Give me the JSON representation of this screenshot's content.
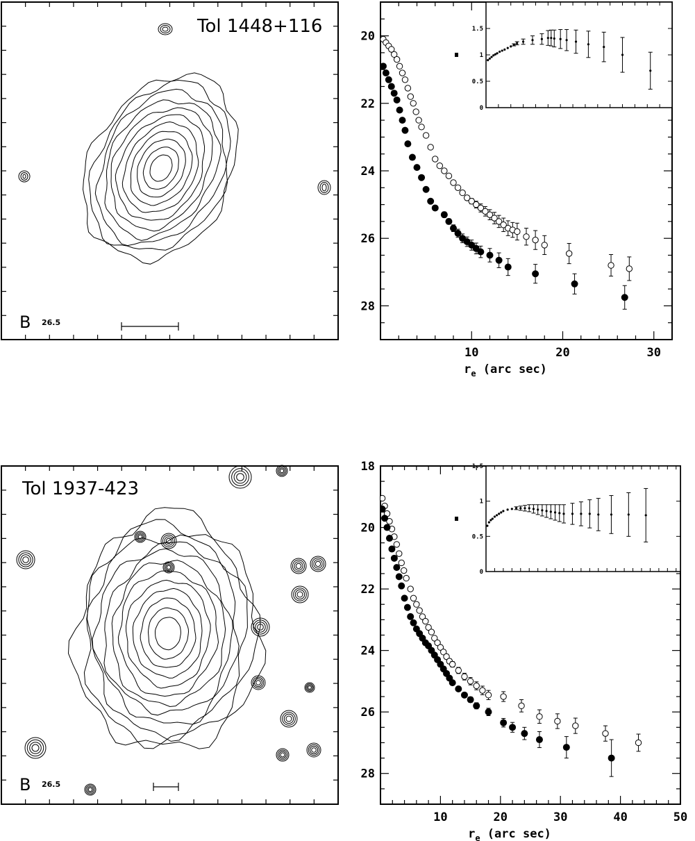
{
  "colors": {
    "ink": "#000000",
    "paper": "#ffffff"
  },
  "chart_data": [
    {
      "type": "contour",
      "title": "Tol 1448+116",
      "band_label": "B",
      "isophote_label": "26.5"
    },
    {
      "type": "scatter",
      "xlabel": "r",
      "xlabel_sub": "e",
      "xlabel_tail": " (arc sec)",
      "xlim": [
        0,
        32
      ],
      "ylim": [
        29,
        19
      ],
      "xticks": [
        10,
        20,
        30
      ],
      "yticks": [
        20,
        22,
        24,
        26,
        28
      ],
      "series": [
        {
          "marker": "open-circle",
          "x": [
            0.3,
            0.6,
            0.9,
            1.2,
            1.5,
            1.8,
            2.1,
            2.4,
            2.7,
            3.0,
            3.3,
            3.6,
            3.9,
            4.2,
            4.5,
            5.0,
            5.5,
            6.0,
            6.5,
            7.0,
            7.5,
            8.0,
            8.5,
            9.0,
            9.5,
            10.0,
            10.5,
            11.0,
            11.5,
            12.0,
            12.5,
            13.0,
            13.5,
            14.0,
            14.5,
            15.0,
            16.0,
            17.0,
            18.0,
            20.7,
            25.3,
            27.3
          ],
          "y": [
            20.1,
            20.2,
            20.3,
            20.4,
            20.55,
            20.7,
            20.9,
            21.1,
            21.3,
            21.55,
            21.8,
            22.0,
            22.25,
            22.5,
            22.7,
            22.95,
            23.3,
            23.65,
            23.85,
            24.0,
            24.15,
            24.35,
            24.5,
            24.65,
            24.8,
            24.9,
            25.0,
            25.1,
            25.2,
            25.3,
            25.4,
            25.5,
            25.6,
            25.7,
            25.75,
            25.8,
            25.95,
            26.05,
            26.2,
            26.45,
            26.8,
            26.9
          ],
          "yerr": [
            0,
            0,
            0,
            0,
            0,
            0,
            0,
            0,
            0,
            0,
            0,
            0,
            0,
            0,
            0,
            0,
            0,
            0,
            0,
            0,
            0,
            0,
            0,
            0.05,
            0.07,
            0.08,
            0.1,
            0.12,
            0.14,
            0.15,
            0.17,
            0.18,
            0.2,
            0.22,
            0.22,
            0.25,
            0.25,
            0.28,
            0.28,
            0.3,
            0.32,
            0.35
          ]
        },
        {
          "marker": "filled-circle",
          "x": [
            0.3,
            0.6,
            0.9,
            1.2,
            1.5,
            1.8,
            2.1,
            2.4,
            2.7,
            3.0,
            3.5,
            4.0,
            4.5,
            5.0,
            5.5,
            6.0,
            7.0,
            7.5,
            8.0,
            8.5,
            9.0,
            9.5,
            10.0,
            10.5,
            11.0,
            12.0,
            13.0,
            14.0,
            17.0,
            21.3,
            26.8
          ],
          "y": [
            20.9,
            21.1,
            21.3,
            21.5,
            21.7,
            21.9,
            22.2,
            22.5,
            22.8,
            23.2,
            23.6,
            23.9,
            24.2,
            24.55,
            24.9,
            25.1,
            25.3,
            25.5,
            25.7,
            25.85,
            26.0,
            26.1,
            26.2,
            26.3,
            26.4,
            26.5,
            26.65,
            26.85,
            27.05,
            27.35,
            27.75
          ],
          "yerr": [
            0,
            0,
            0,
            0,
            0,
            0,
            0,
            0,
            0,
            0,
            0,
            0,
            0,
            0,
            0,
            0,
            0.08,
            0.08,
            0.1,
            0.12,
            0.13,
            0.14,
            0.15,
            0.16,
            0.17,
            0.2,
            0.22,
            0.25,
            0.28,
            0.3,
            0.35
          ]
        }
      ],
      "inset": {
        "xlim": [
          0,
          30
        ],
        "ylim": [
          0,
          2
        ],
        "yticks": [
          0,
          0.5,
          1,
          1.5
        ],
        "yticklabels": [
          "0",
          "0.5",
          "1",
          "1.5"
        ],
        "x": [
          0.3,
          0.6,
          0.9,
          1.2,
          1.5,
          1.8,
          2.2,
          2.6,
          3.0,
          3.5,
          4.0,
          4.5,
          5.0,
          6.0,
          7.5,
          9.0,
          10.0,
          10.5,
          11.0,
          12.0,
          13.0,
          14.5,
          16.5,
          19.0,
          22.0,
          26.5
        ],
        "y": [
          0.9,
          0.93,
          0.96,
          0.99,
          1.01,
          1.03,
          1.06,
          1.08,
          1.1,
          1.13,
          1.16,
          1.19,
          1.22,
          1.25,
          1.28,
          1.3,
          1.32,
          1.32,
          1.31,
          1.3,
          1.28,
          1.25,
          1.2,
          1.15,
          1.0,
          0.7
        ],
        "yerr": [
          0,
          0,
          0,
          0,
          0,
          0,
          0,
          0,
          0,
          0,
          0,
          0.02,
          0.03,
          0.05,
          0.08,
          0.1,
          0.14,
          0.15,
          0.16,
          0.18,
          0.2,
          0.22,
          0.25,
          0.28,
          0.33,
          0.35
        ]
      }
    },
    {
      "type": "contour",
      "title": "Tol 1937-423",
      "band_label": "B",
      "isophote_label": "26.5"
    },
    {
      "type": "scatter",
      "xlabel": "r",
      "xlabel_sub": "e",
      "xlabel_tail": " (arc sec)",
      "xlim": [
        0,
        50
      ],
      "ylim": [
        29,
        18
      ],
      "xticks": [
        10,
        20,
        30,
        40,
        50
      ],
      "yticks": [
        18,
        20,
        22,
        24,
        26,
        28
      ],
      "series": [
        {
          "marker": "open-circle",
          "x": [
            0.3,
            0.7,
            1.1,
            1.5,
            1.9,
            2.3,
            2.7,
            3.1,
            3.5,
            3.9,
            4.3,
            5.0,
            5.5,
            6.0,
            6.5,
            7.0,
            7.5,
            8.0,
            8.5,
            9.0,
            9.5,
            10.0,
            10.5,
            11.0,
            11.5,
            12.0,
            13.0,
            14.0,
            15.0,
            16.0,
            17.0,
            18.0,
            20.5,
            23.5,
            26.5,
            29.5,
            32.5,
            37.5,
            43.0
          ],
          "y": [
            19.05,
            19.3,
            19.55,
            19.8,
            20.05,
            20.3,
            20.55,
            20.85,
            21.15,
            21.4,
            21.65,
            22.0,
            22.3,
            22.5,
            22.7,
            22.9,
            23.05,
            23.25,
            23.4,
            23.6,
            23.75,
            23.9,
            24.05,
            24.2,
            24.35,
            24.45,
            24.65,
            24.85,
            25.0,
            25.15,
            25.3,
            25.45,
            25.5,
            25.8,
            26.15,
            26.3,
            26.45,
            26.7,
            27.0
          ],
          "yerr": [
            0,
            0,
            0,
            0,
            0,
            0,
            0,
            0,
            0,
            0,
            0,
            0,
            0,
            0,
            0,
            0,
            0,
            0,
            0,
            0.04,
            0.05,
            0.06,
            0.07,
            0.08,
            0.08,
            0.09,
            0.1,
            0.11,
            0.12,
            0.13,
            0.14,
            0.15,
            0.16,
            0.2,
            0.22,
            0.24,
            0.25,
            0.25,
            0.28
          ]
        },
        {
          "marker": "filled-circle",
          "x": [
            0.3,
            0.7,
            1.1,
            1.5,
            1.9,
            2.3,
            2.7,
            3.1,
            3.5,
            4.0,
            4.5,
            5.0,
            5.5,
            6.0,
            6.5,
            7.0,
            7.5,
            8.0,
            8.5,
            9.0,
            9.5,
            10.0,
            10.5,
            11.0,
            11.5,
            12.0,
            13.0,
            14.0,
            15.0,
            16.0,
            18.0,
            20.5,
            22.0,
            24.0,
            26.5,
            31.0,
            38.5
          ],
          "y": [
            19.4,
            19.7,
            20.0,
            20.35,
            20.7,
            21.0,
            21.3,
            21.6,
            21.9,
            22.3,
            22.6,
            22.9,
            23.1,
            23.3,
            23.45,
            23.6,
            23.75,
            23.85,
            24.0,
            24.15,
            24.3,
            24.45,
            24.6,
            24.75,
            24.9,
            25.05,
            25.25,
            25.45,
            25.6,
            25.8,
            26.0,
            26.35,
            26.5,
            26.7,
            26.9,
            27.15,
            27.5
          ],
          "yerr": [
            0,
            0,
            0,
            0,
            0,
            0,
            0,
            0,
            0,
            0,
            0,
            0,
            0,
            0,
            0,
            0,
            0,
            0,
            0,
            0,
            0,
            0,
            0,
            0,
            0.05,
            0.06,
            0.07,
            0.08,
            0.09,
            0.1,
            0.12,
            0.14,
            0.16,
            0.2,
            0.26,
            0.35,
            0.6
          ]
        }
      ],
      "inset": {
        "xlim": [
          0,
          45
        ],
        "ylim": [
          0,
          1.5
        ],
        "yticks": [
          0,
          0.5,
          1,
          1.5
        ],
        "yticklabels": [
          "0",
          "0.5",
          "1",
          "1.5"
        ],
        "x": [
          0.3,
          0.7,
          1.1,
          1.5,
          2.0,
          2.5,
          3.0,
          3.5,
          4.0,
          5.0,
          6.0,
          7.0,
          8.0,
          9.0,
          10.0,
          11.0,
          12.0,
          13.0,
          14.0,
          15.0,
          16.0,
          17.0,
          18.0,
          20.0,
          22.0,
          24.0,
          26.0,
          29.0,
          33.0,
          37.0
        ],
        "y": [
          0.65,
          0.7,
          0.73,
          0.75,
          0.78,
          0.8,
          0.82,
          0.84,
          0.86,
          0.88,
          0.89,
          0.9,
          0.9,
          0.9,
          0.9,
          0.89,
          0.88,
          0.87,
          0.86,
          0.85,
          0.84,
          0.83,
          0.82,
          0.82,
          0.82,
          0.82,
          0.81,
          0.81,
          0.81,
          0.8
        ],
        "yerr": [
          0,
          0,
          0,
          0,
          0,
          0,
          0,
          0,
          0,
          0,
          0,
          0.02,
          0.03,
          0.04,
          0.05,
          0.06,
          0.07,
          0.08,
          0.09,
          0.1,
          0.11,
          0.12,
          0.13,
          0.15,
          0.17,
          0.2,
          0.23,
          0.27,
          0.31,
          0.38
        ]
      }
    }
  ]
}
